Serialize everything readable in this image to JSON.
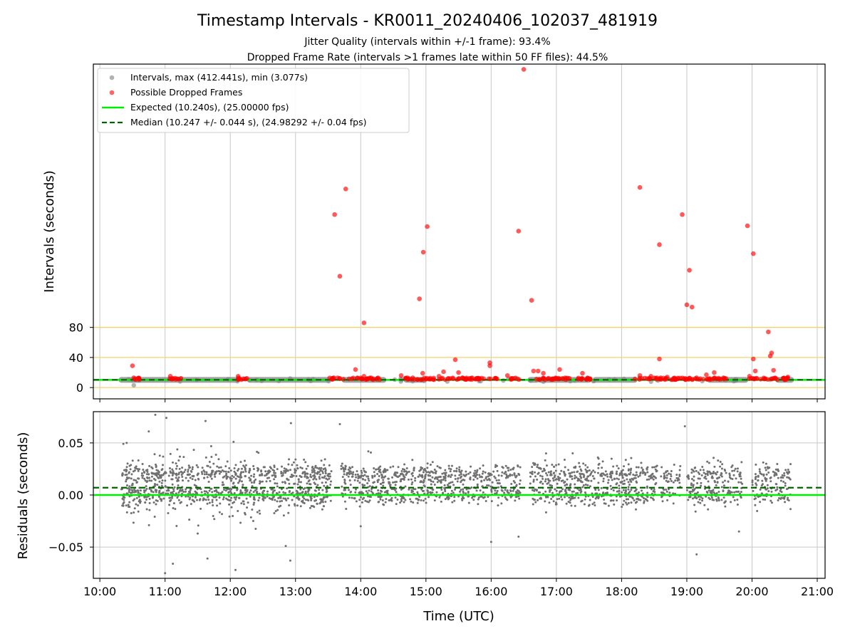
{
  "title": "Timestamp Intervals - KR0011_20240406_102037_481919",
  "subtitle1": "Jitter Quality (intervals within +/-1 frame): 93.4%",
  "subtitle2": "Dropped Frame Rate (intervals >1 frames late within 50 FF files): 44.5%",
  "colors": {
    "intervals": "#808080",
    "dropped": "#ff0000",
    "expected": "#00ee00",
    "median": "#006400",
    "threshold": "#f5d36b",
    "grid": "#c8c8c8",
    "residuals": "#707070"
  },
  "chart_data": [
    {
      "type": "scatter",
      "panel": "intervals",
      "ylabel": "Intervals (seconds)",
      "yticks": [
        "0",
        "40",
        "80"
      ],
      "ylim_display": [
        -15,
        430
      ],
      "threshold_lines": [
        0,
        40,
        80
      ],
      "expected": 10.24,
      "median": 10.247,
      "legend": [
        "Intervals, max (412.441s), min (3.077s)",
        "Possible Dropped Frames",
        "Expected (10.240s), (25.00000 fps)",
        "Median (10.247 +/- 0.044 s), (24.98292 +/- 0.04 fps)"
      ],
      "legend_position": "top-left",
      "grid": "x",
      "gray_segments_hours": [
        [
          10.33,
          10.6
        ],
        [
          10.6,
          12.1
        ],
        [
          12.3,
          13.5
        ],
        [
          13.75,
          14.35
        ],
        [
          14.7,
          14.95
        ],
        [
          16.6,
          16.7
        ],
        [
          16.75,
          17.5
        ],
        [
          17.6,
          18.2
        ],
        [
          19.35,
          19.75
        ],
        [
          19.75,
          19.9
        ],
        [
          20.4,
          20.6
        ]
      ],
      "red_segments_hours": [
        [
          10.5,
          10.65
        ],
        [
          11.05,
          11.25
        ],
        [
          12.1,
          12.3
        ],
        [
          13.5,
          13.75
        ],
        [
          13.8,
          14.3
        ],
        [
          14.65,
          16.1
        ],
        [
          16.3,
          16.45
        ],
        [
          16.68,
          17.55
        ],
        [
          18.2,
          19.25
        ],
        [
          19.25,
          19.6
        ],
        [
          19.9,
          20.55
        ]
      ],
      "dropped_frames": [
        [
          10.5,
          29
        ],
        [
          10.52,
          13
        ],
        [
          11.08,
          15
        ],
        [
          12.12,
          15
        ],
        [
          13.6,
          230
        ],
        [
          13.68,
          148
        ],
        [
          13.77,
          264
        ],
        [
          13.92,
          24
        ],
        [
          14.05,
          86
        ],
        [
          14.05,
          15
        ],
        [
          14.62,
          16
        ],
        [
          14.9,
          118
        ],
        [
          14.96,
          180
        ],
        [
          14.95,
          19
        ],
        [
          15.02,
          214
        ],
        [
          15.2,
          15
        ],
        [
          15.27,
          21
        ],
        [
          15.45,
          37
        ],
        [
          15.5,
          20
        ],
        [
          15.98,
          29
        ],
        [
          15.98,
          33
        ],
        [
          16.25,
          16
        ],
        [
          16.42,
          208
        ],
        [
          16.5,
          423
        ],
        [
          16.62,
          116
        ],
        [
          16.65,
          22
        ],
        [
          16.72,
          22
        ],
        [
          16.8,
          19
        ],
        [
          17.05,
          24
        ],
        [
          17.4,
          19
        ],
        [
          18.28,
          266
        ],
        [
          18.28,
          16
        ],
        [
          18.45,
          15
        ],
        [
          18.58,
          38
        ],
        [
          18.58,
          190
        ],
        [
          18.6,
          13
        ],
        [
          18.7,
          14
        ],
        [
          18.93,
          230
        ],
        [
          19.0,
          110
        ],
        [
          19.04,
          156
        ],
        [
          19.08,
          107
        ],
        [
          19.15,
          13
        ],
        [
          19.3,
          17
        ],
        [
          19.42,
          20
        ],
        [
          19.6,
          12
        ],
        [
          19.93,
          215
        ],
        [
          19.96,
          15
        ],
        [
          20.02,
          178
        ],
        [
          20.02,
          38
        ],
        [
          20.05,
          22
        ],
        [
          20.25,
          74
        ],
        [
          20.28,
          42
        ],
        [
          20.3,
          46
        ],
        [
          20.33,
          23
        ],
        [
          20.55,
          14
        ]
      ]
    },
    {
      "type": "scatter",
      "panel": "residuals",
      "ylabel": "Residuals (seconds)",
      "xlabel": "Time (UTC)",
      "xticks": [
        "10:00",
        "11:00",
        "12:00",
        "13:00",
        "14:00",
        "15:00",
        "16:00",
        "17:00",
        "18:00",
        "19:00",
        "20:00",
        "21:00"
      ],
      "yticks": [
        "0.05",
        "0.00",
        "−0.05"
      ],
      "ylim": [
        -0.08,
        0.08
      ],
      "xlim_hours": [
        9.9,
        21.12
      ],
      "expected_residual": 0.0,
      "median_residual": 0.007,
      "grid": "both",
      "outliers": [
        [
          10.85,
          0.077
        ],
        [
          11.02,
          0.074
        ],
        [
          11.0,
          -0.075
        ],
        [
          11.12,
          -0.066
        ],
        [
          11.62,
          0.071
        ],
        [
          11.65,
          -0.061
        ],
        [
          12.05,
          0.051
        ],
        [
          12.08,
          -0.072
        ],
        [
          12.93,
          0.069
        ],
        [
          12.92,
          -0.063
        ],
        [
          13.68,
          0.068
        ],
        [
          18.97,
          0.066
        ],
        [
          19.15,
          -0.057
        ],
        [
          10.75,
          0.061
        ],
        [
          11.5,
          -0.037
        ],
        [
          12.85,
          -0.049
        ],
        [
          14.0,
          -0.03
        ],
        [
          16.42,
          -0.04
        ],
        [
          16.0,
          -0.045
        ],
        [
          17.25,
          0.04
        ],
        [
          19.8,
          -0.035
        ]
      ],
      "bands": [
        {
          "x0": 10.33,
          "x1": 13.55,
          "center": 0.008,
          "spread": 0.021,
          "density": 1.0
        },
        {
          "x0": 13.7,
          "x1": 16.45,
          "center": 0.012,
          "spread": 0.014,
          "density": 0.8
        },
        {
          "x0": 16.6,
          "x1": 18.55,
          "center": 0.012,
          "spread": 0.016,
          "density": 0.85
        },
        {
          "x0": 18.6,
          "x1": 18.9,
          "center": 0.012,
          "spread": 0.016,
          "density": 0.6
        },
        {
          "x0": 19.0,
          "x1": 19.85,
          "center": 0.012,
          "spread": 0.017,
          "density": 0.75
        },
        {
          "x0": 20.0,
          "x1": 20.6,
          "center": 0.011,
          "spread": 0.015,
          "density": 0.7
        }
      ]
    }
  ]
}
